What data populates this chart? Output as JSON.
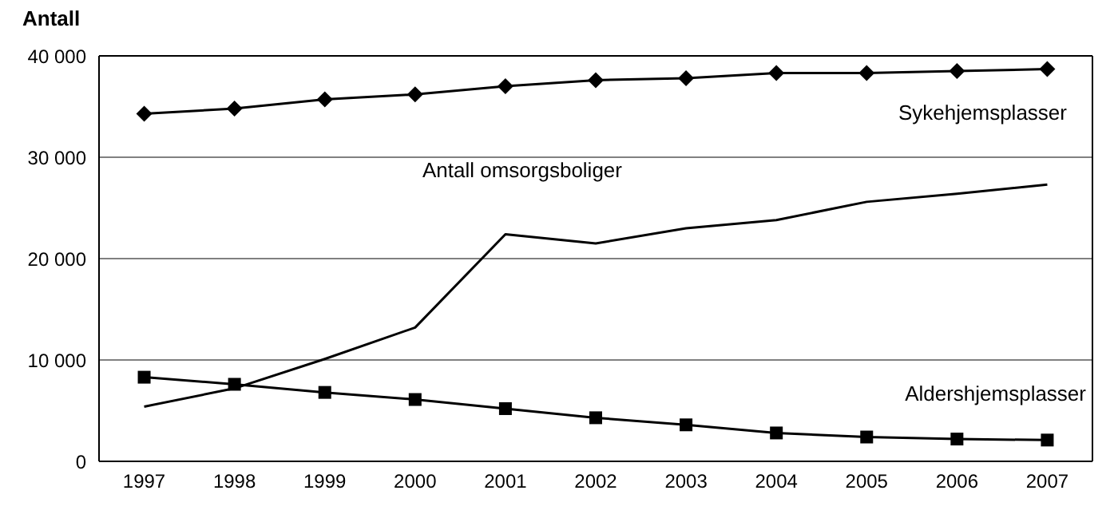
{
  "chart_data": {
    "type": "line",
    "ylabel": "Antall",
    "categories": [
      "1997",
      "1998",
      "1999",
      "2000",
      "2001",
      "2002",
      "2003",
      "2004",
      "2005",
      "2006",
      "2007"
    ],
    "series": [
      {
        "name": "Sykehjemsplasser",
        "color": "#000000",
        "marker": "diamond",
        "values": [
          34300,
          34800,
          35700,
          36200,
          37000,
          37600,
          37800,
          38300,
          38300,
          38500,
          38700
        ]
      },
      {
        "name": "Antall omsorgsboliger",
        "color": "#000000",
        "marker": "none",
        "values": [
          5400,
          7200,
          10100,
          13200,
          22400,
          21500,
          23000,
          23800,
          25600,
          26400,
          27300
        ]
      },
      {
        "name": "Aldershjemsplasser",
        "color": "#000000",
        "marker": "square",
        "values": [
          8300,
          7600,
          6800,
          6100,
          5200,
          4300,
          3600,
          2800,
          2400,
          2200,
          2100
        ]
      }
    ],
    "ylim": [
      0,
      40000
    ],
    "yticks": [
      0,
      {
        "value": 10000,
        "label": "10 000"
      },
      {
        "value": 20000,
        "label": "20 000"
      },
      {
        "value": 30000,
        "label": "30 000"
      },
      {
        "value": 40000,
        "label": "40 000"
      }
    ],
    "grid": "y",
    "line_style": "solid"
  }
}
